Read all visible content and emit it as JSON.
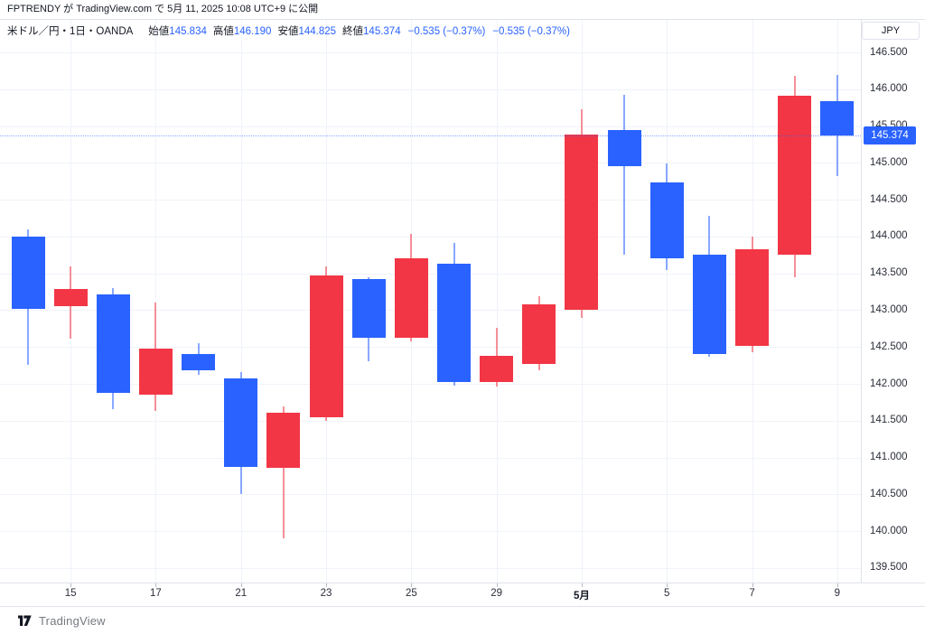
{
  "attribution": {
    "user": "FPTRENDY",
    "mid": " が ",
    "site": "TradingView.com",
    "rest": " で 5月 11, 2025 10:08 UTC+9 に公開"
  },
  "legend": {
    "symbol_info": "米ドル／円・1日・OANDA",
    "fields": [
      {
        "label": "始値",
        "value": "145.834"
      },
      {
        "label": "高値",
        "value": "146.190"
      },
      {
        "label": "安値",
        "value": "144.825"
      },
      {
        "label": "終値",
        "value": "145.374"
      }
    ],
    "change": "−0.535 (−0.37%)",
    "change2": "−0.535 (−0.37%)"
  },
  "price_axis": {
    "currency_label": "JPY",
    "labels": [
      "146.500",
      "146.000",
      "145.500",
      "145.000",
      "144.500",
      "144.000",
      "143.500",
      "143.000",
      "142.500",
      "142.000",
      "141.500",
      "141.000",
      "140.500",
      "140.000",
      "139.500"
    ],
    "current_price_label": "145.374"
  },
  "watermark": {
    "logo": "tradingview-logo",
    "text": "TradingView"
  },
  "colors": {
    "up_body": "#f23645",
    "down_body": "#2962ff",
    "up_wick": "rgba(242,54,69,0.55)",
    "down_wick": "rgba(41,98,255,0.55)",
    "grid": "#f0f3fa",
    "accent": "#2962ff",
    "badge_bg": "#2962ff"
  },
  "chart_data": {
    "type": "candlestick",
    "title": "米ドル／円・1日・OANDA",
    "symbol": "米ドル／円",
    "timeframe": "1日",
    "exchange": "OANDA",
    "ylabel": "JPY",
    "ylim": [
      139.5,
      146.5
    ],
    "grid": true,
    "current_price": 145.374,
    "up_means": "red (陽線)",
    "down_means": "blue (陰線)",
    "candles": [
      {
        "date": "4/14",
        "o": 144.0,
        "h": 144.1,
        "l": 142.26,
        "c": 143.02
      },
      {
        "date": "4/15",
        "o": 143.05,
        "h": 143.6,
        "l": 142.61,
        "c": 143.29
      },
      {
        "date": "4/16",
        "o": 143.21,
        "h": 143.3,
        "l": 141.66,
        "c": 141.88
      },
      {
        "date": "4/17",
        "o": 141.85,
        "h": 143.1,
        "l": 141.63,
        "c": 142.48
      },
      {
        "date": "4/18",
        "o": 142.41,
        "h": 142.55,
        "l": 142.12,
        "c": 142.19
      },
      {
        "date": "4/21",
        "o": 142.07,
        "h": 142.16,
        "l": 140.51,
        "c": 140.87
      },
      {
        "date": "4/22",
        "o": 140.86,
        "h": 141.69,
        "l": 139.9,
        "c": 141.61
      },
      {
        "date": "4/23",
        "o": 141.55,
        "h": 143.59,
        "l": 141.5,
        "c": 143.47
      },
      {
        "date": "4/24",
        "o": 143.42,
        "h": 143.45,
        "l": 142.31,
        "c": 142.63
      },
      {
        "date": "4/25",
        "o": 142.63,
        "h": 144.03,
        "l": 142.58,
        "c": 143.7
      },
      {
        "date": "4/28",
        "o": 143.63,
        "h": 143.91,
        "l": 141.98,
        "c": 142.02
      },
      {
        "date": "4/29",
        "o": 142.03,
        "h": 142.76,
        "l": 141.97,
        "c": 142.38
      },
      {
        "date": "4/30",
        "o": 142.27,
        "h": 143.19,
        "l": 142.19,
        "c": 143.08
      },
      {
        "date": "5/1",
        "o": 143.0,
        "h": 145.73,
        "l": 142.9,
        "c": 145.39
      },
      {
        "date": "5/2",
        "o": 145.44,
        "h": 145.92,
        "l": 143.75,
        "c": 144.95
      },
      {
        "date": "5/5",
        "o": 144.74,
        "h": 144.99,
        "l": 143.55,
        "c": 143.71
      },
      {
        "date": "5/6",
        "o": 143.76,
        "h": 144.28,
        "l": 142.37,
        "c": 142.4
      },
      {
        "date": "5/7",
        "o": 142.51,
        "h": 144.0,
        "l": 142.43,
        "c": 143.83
      },
      {
        "date": "5/8",
        "o": 143.76,
        "h": 146.18,
        "l": 143.45,
        "c": 145.91
      },
      {
        "date": "5/9",
        "o": 145.834,
        "h": 146.19,
        "l": 144.825,
        "c": 145.374
      }
    ],
    "ticks": [
      {
        "i": 1,
        "label": "15"
      },
      {
        "i": 3,
        "label": "17"
      },
      {
        "i": 5,
        "label": "21"
      },
      {
        "i": 7,
        "label": "23"
      },
      {
        "i": 9,
        "label": "25"
      },
      {
        "i": 11,
        "label": "29"
      },
      {
        "i": 13,
        "label": "5月",
        "bold": true
      },
      {
        "i": 15,
        "label": "5"
      },
      {
        "i": 17,
        "label": "7"
      },
      {
        "i": 19,
        "label": "9"
      }
    ]
  }
}
